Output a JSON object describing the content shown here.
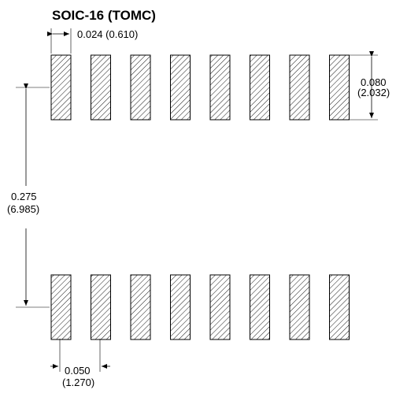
{
  "title": "SOIC-16 (TOMC)",
  "dimensions": {
    "pad_width": "0.024 (0.610)",
    "pad_length_in": "0.080",
    "pad_length_mm": "(2.032)",
    "row_spacing_in": "0.275",
    "row_spacing_mm": "(6.985)",
    "pitch_in": "0.050",
    "pitch_mm": "(1.270)"
  },
  "pads_per_row": 8,
  "rows": [
    "top",
    "bottom"
  ]
}
